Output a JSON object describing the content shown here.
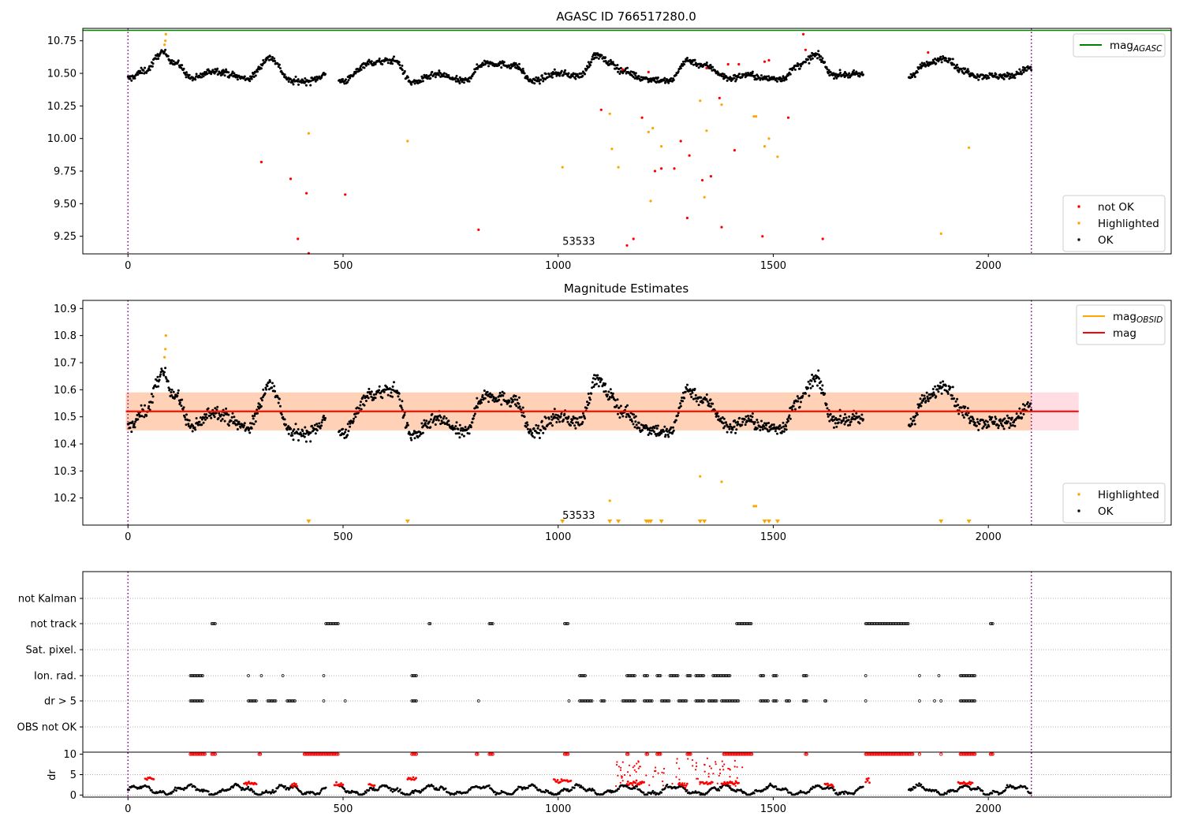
{
  "chart_data": [
    {
      "type": "scatter",
      "title": "AGASC ID 766517280.0",
      "xlim": [
        -105,
        2425
      ],
      "ylim": [
        9.115,
        10.845
      ],
      "yticks": [
        "9.25",
        "9.50",
        "9.75",
        "10.00",
        "10.25",
        "10.50",
        "10.75"
      ],
      "xticks": [
        "0",
        "500",
        "1000",
        "1500",
        "2000"
      ],
      "vlines": [
        0,
        2100
      ],
      "hline": {
        "name": "mag_AGASC",
        "value": 10.83,
        "color": "#008000"
      },
      "annotation": {
        "text": "53533",
        "x": 1010,
        "y": 9.21
      },
      "legend": {
        "upper": [
          {
            "label": "mag",
            "sub": "AGASC",
            "color": "#008000",
            "kind": "line"
          }
        ],
        "lower": [
          {
            "label": "not OK",
            "color": "#ff0000",
            "kind": "dot"
          },
          {
            "label": "Highlighted",
            "color": "#ffa500",
            "kind": "dot"
          },
          {
            "label": "OK",
            "color": "#000000",
            "kind": "dot"
          }
        ]
      },
      "series": [
        {
          "name": "not OK",
          "color": "#ff0000",
          "points": [
            [
              310,
              9.82
            ],
            [
              378,
              9.69
            ],
            [
              395,
              9.23
            ],
            [
              415,
              9.58
            ],
            [
              420,
              9.12
            ],
            [
              505,
              9.57
            ],
            [
              815,
              9.3
            ],
            [
              1100,
              10.22
            ],
            [
              1150,
              10.53
            ],
            [
              1160,
              9.18
            ],
            [
              1175,
              9.23
            ],
            [
              1195,
              10.16
            ],
            [
              1210,
              10.51
            ],
            [
              1225,
              9.75
            ],
            [
              1240,
              9.77
            ],
            [
              1270,
              9.77
            ],
            [
              1285,
              9.98
            ],
            [
              1300,
              9.39
            ],
            [
              1305,
              9.87
            ],
            [
              1335,
              9.68
            ],
            [
              1345,
              10.54
            ],
            [
              1355,
              9.71
            ],
            [
              1375,
              10.31
            ],
            [
              1380,
              9.32
            ],
            [
              1395,
              10.57
            ],
            [
              1410,
              9.91
            ],
            [
              1420,
              10.57
            ],
            [
              1475,
              9.25
            ],
            [
              1480,
              10.59
            ],
            [
              1490,
              10.6
            ],
            [
              1535,
              10.16
            ],
            [
              1570,
              10.8
            ],
            [
              1575,
              10.68
            ],
            [
              1615,
              9.23
            ],
            [
              1860,
              10.66
            ]
          ]
        },
        {
          "name": "Highlighted",
          "color": "#ffa500",
          "points": [
            [
              85,
              10.72
            ],
            [
              87,
              10.75
            ],
            [
              88,
              10.8
            ],
            [
              420,
              10.04
            ],
            [
              650,
              9.98
            ],
            [
              1010,
              9.78
            ],
            [
              1120,
              10.19
            ],
            [
              1125,
              9.92
            ],
            [
              1140,
              9.78
            ],
            [
              1210,
              10.05
            ],
            [
              1215,
              9.52
            ],
            [
              1220,
              10.08
            ],
            [
              1240,
              9.94
            ],
            [
              1330,
              10.29
            ],
            [
              1340,
              9.55
            ],
            [
              1345,
              10.06
            ],
            [
              1380,
              10.26
            ],
            [
              1455,
              10.17
            ],
            [
              1460,
              10.17
            ],
            [
              1480,
              9.94
            ],
            [
              1490,
              10.0
            ],
            [
              1510,
              9.86
            ],
            [
              1890,
              9.27
            ],
            [
              1955,
              9.93
            ]
          ]
        },
        {
          "name": "OK",
          "color": "#000000",
          "segments": [
            [
              0,
              460
            ],
            [
              490,
              1710
            ],
            [
              1815,
              2100
            ]
          ],
          "center": 10.5,
          "amp": 0.1,
          "jitter": 0.025,
          "waves": [
            [
              0,
              10.46
            ],
            [
              40,
              10.52
            ],
            [
              80,
              10.66
            ],
            [
              110,
              10.58
            ],
            [
              150,
              10.46
            ],
            [
              200,
              10.52
            ],
            [
              280,
              10.46
            ],
            [
              330,
              10.62
            ],
            [
              380,
              10.44
            ],
            [
              420,
              10.44
            ],
            [
              460,
              10.49
            ],
            [
              500,
              10.44
            ],
            [
              560,
              10.58
            ],
            [
              620,
              10.6
            ],
            [
              660,
              10.43
            ],
            [
              720,
              10.49
            ],
            [
              780,
              10.44
            ],
            [
              830,
              10.58
            ],
            [
              900,
              10.56
            ],
            [
              940,
              10.44
            ],
            [
              1000,
              10.5
            ],
            [
              1050,
              10.48
            ],
            [
              1090,
              10.64
            ],
            [
              1120,
              10.58
            ],
            [
              1150,
              10.52
            ],
            [
              1200,
              10.46
            ],
            [
              1260,
              10.44
            ],
            [
              1300,
              10.6
            ],
            [
              1340,
              10.56
            ],
            [
              1400,
              10.46
            ],
            [
              1440,
              10.49
            ],
            [
              1480,
              10.46
            ],
            [
              1520,
              10.46
            ],
            [
              1560,
              10.56
            ],
            [
              1600,
              10.64
            ],
            [
              1640,
              10.49
            ],
            [
              1710,
              10.49
            ],
            [
              1815,
              10.47
            ],
            [
              1850,
              10.56
            ],
            [
              1900,
              10.62
            ],
            [
              1940,
              10.52
            ],
            [
              1980,
              10.48
            ],
            [
              2050,
              10.48
            ],
            [
              2100,
              10.54
            ]
          ]
        }
      ]
    },
    {
      "type": "scatter",
      "title": "Magnitude Estimates",
      "xlim": [
        -105,
        2425
      ],
      "ylim": [
        10.1,
        10.93
      ],
      "yticks": [
        "10.2",
        "10.3",
        "10.4",
        "10.5",
        "10.6",
        "10.7",
        "10.8",
        "10.9"
      ],
      "xticks": [
        "0",
        "500",
        "1000",
        "1500",
        "2000"
      ],
      "vlines": [
        0,
        2100
      ],
      "hline": {
        "name": "mag",
        "value": 10.52,
        "color": "#ff0000"
      },
      "band": {
        "low": 10.45,
        "high": 10.59,
        "x0": -5,
        "x1": 2210
      },
      "annotation": {
        "text": "53533",
        "x": 1010,
        "y": 10.135
      },
      "legend": {
        "upper": [
          {
            "label": "mag",
            "sub": "OBSID",
            "color": "#ffa500",
            "kind": "line"
          },
          {
            "label": "mag",
            "sub": "",
            "color": "#ff0000",
            "kind": "line"
          }
        ],
        "lower": [
          {
            "label": "Highlighted",
            "color": "#ffa500",
            "kind": "dot"
          },
          {
            "label": "OK",
            "color": "#000000",
            "kind": "dot"
          }
        ]
      },
      "series": [
        {
          "name": "Highlighted",
          "color": "#ffa500",
          "points": [
            [
              85,
              10.72
            ],
            [
              87,
              10.75
            ],
            [
              88,
              10.8
            ],
            [
              1120,
              10.19
            ],
            [
              1330,
              10.28
            ],
            [
              1380,
              10.26
            ],
            [
              1455,
              10.17
            ],
            [
              1460,
              10.17
            ]
          ]
        },
        {
          "name": "Highlighted (below axis)",
          "color": "#ffa500",
          "markers_x": [
            420,
            650,
            1010,
            1120,
            1140,
            1205,
            1210,
            1215,
            1240,
            1330,
            1340,
            1480,
            1490,
            1510,
            1890,
            1955
          ]
        },
        {
          "name": "OK",
          "color": "#000000",
          "ref": 0
        }
      ]
    },
    {
      "type": "scatter",
      "title": "",
      "xlim": [
        -105,
        2425
      ],
      "xticks": [
        "0",
        "500",
        "1000",
        "1500",
        "2000"
      ],
      "vlines": [
        0,
        2100
      ],
      "categories": [
        "not Kalman",
        "not track",
        "Sat. pixel.",
        "Ion. rad.",
        "dr > 5",
        "OBS not OK"
      ],
      "flags": {
        "not track": [
          [
            195,
            205
          ],
          [
            460,
            490
          ],
          [
            700,
            705
          ],
          [
            840,
            848
          ],
          [
            1015,
            1025
          ],
          [
            1415,
            1450
          ],
          [
            1715,
            1815
          ],
          [
            2005,
            2012
          ]
        ],
        "Ion. rad.": [
          [
            145,
            175
          ],
          [
            280,
            282
          ],
          [
            310,
            312
          ],
          [
            360,
            362
          ],
          [
            455,
            457
          ],
          [
            660,
            672
          ],
          [
            1050,
            1065
          ],
          [
            1160,
            1180
          ],
          [
            1200,
            1210
          ],
          [
            1230,
            1240
          ],
          [
            1260,
            1280
          ],
          [
            1300,
            1310
          ],
          [
            1320,
            1340
          ],
          [
            1360,
            1400
          ],
          [
            1470,
            1480
          ],
          [
            1500,
            1510
          ],
          [
            1570,
            1580
          ],
          [
            1715,
            1717
          ],
          [
            1840,
            1842
          ],
          [
            1885,
            1887
          ],
          [
            1935,
            1970
          ]
        ],
        "dr > 5": [
          [
            145,
            175
          ],
          [
            280,
            300
          ],
          [
            325,
            345
          ],
          [
            370,
            390
          ],
          [
            455,
            457
          ],
          [
            505,
            507
          ],
          [
            660,
            672
          ],
          [
            815,
            817
          ],
          [
            1025,
            1027
          ],
          [
            1050,
            1080
          ],
          [
            1100,
            1110
          ],
          [
            1150,
            1180
          ],
          [
            1200,
            1220
          ],
          [
            1240,
            1260
          ],
          [
            1280,
            1300
          ],
          [
            1320,
            1340
          ],
          [
            1350,
            1370
          ],
          [
            1380,
            1420
          ],
          [
            1470,
            1490
          ],
          [
            1500,
            1510
          ],
          [
            1530,
            1540
          ],
          [
            1570,
            1580
          ],
          [
            1620,
            1625
          ],
          [
            1715,
            1717
          ],
          [
            1840,
            1842
          ],
          [
            1875,
            1877
          ],
          [
            1890,
            1892
          ],
          [
            1935,
            1970
          ]
        ]
      },
      "dr": {
        "ylabel": "dr",
        "yticks": [
          "0",
          "5",
          "10"
        ],
        "ylim": [
          -0.5,
          10.5
        ],
        "hline": 10.3,
        "cap_segments": [
          [
            145,
            180
          ],
          [
            195,
            205
          ],
          [
            305,
            310
          ],
          [
            410,
            490
          ],
          [
            660,
            672
          ],
          [
            810,
            815
          ],
          [
            840,
            848
          ],
          [
            1015,
            1025
          ],
          [
            1160,
            1165
          ],
          [
            1205,
            1210
          ],
          [
            1230,
            1240
          ],
          [
            1300,
            1310
          ],
          [
            1385,
            1450
          ],
          [
            1575,
            1580
          ],
          [
            1715,
            1825
          ],
          [
            1840,
            1842
          ],
          [
            1890,
            1892
          ],
          [
            1935,
            1970
          ],
          [
            2005,
            2012
          ]
        ],
        "red_clusters": [
          [
            40,
            60,
            4.0
          ],
          [
            270,
            300,
            2.8
          ],
          [
            380,
            395,
            2.5
          ],
          [
            480,
            500,
            2.5
          ],
          [
            560,
            575,
            2.5
          ],
          [
            650,
            670,
            4.0
          ],
          [
            990,
            1030,
            3.5
          ],
          [
            1160,
            1200,
            3.0
          ],
          [
            1280,
            1300,
            2.5
          ],
          [
            1330,
            1360,
            3.0
          ],
          [
            1380,
            1420,
            3.0
          ],
          [
            1620,
            1640,
            2.5
          ],
          [
            1715,
            1725,
            3.5
          ],
          [
            1930,
            1965,
            3.0
          ]
        ]
      }
    }
  ]
}
